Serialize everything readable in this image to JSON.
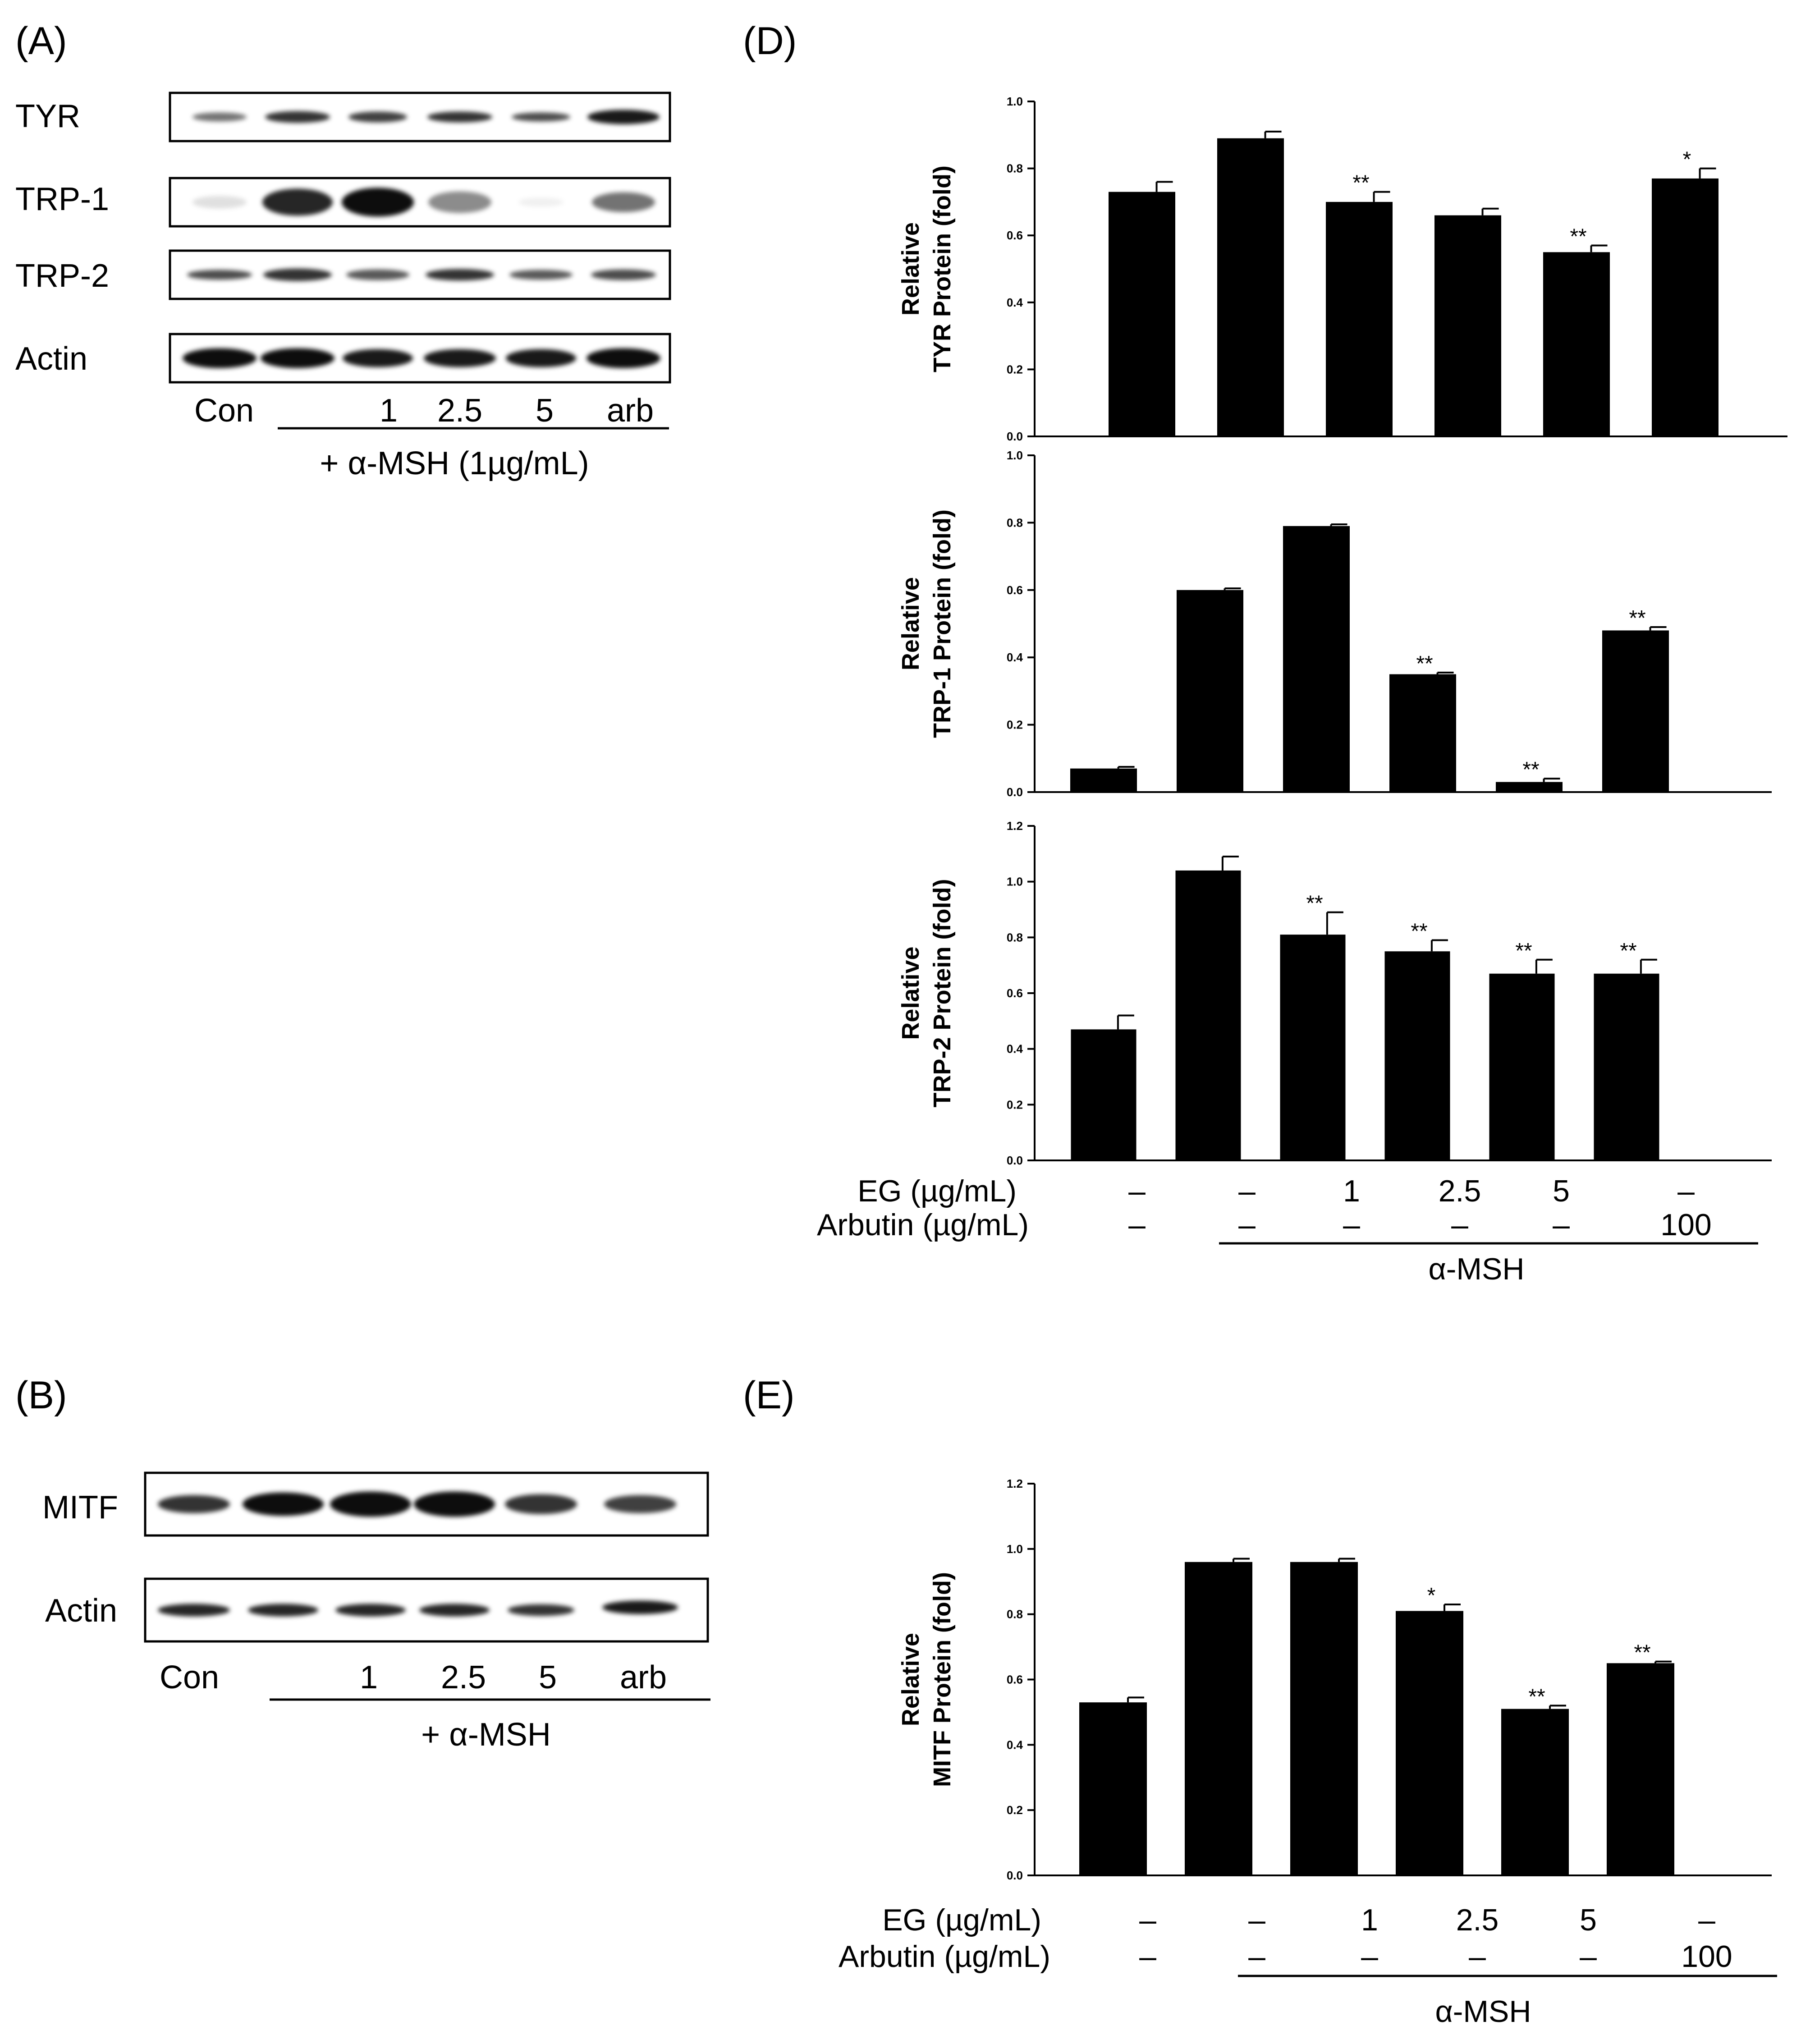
{
  "panels": {
    "A": {
      "label": "(A)",
      "rows": [
        "TYR",
        "TRP-1",
        "TRP-2",
        "Actin"
      ],
      "lanes": [
        "Con",
        "",
        "1",
        "2.5",
        "5",
        "arb"
      ],
      "treatment": "+ α-MSH (1µg/mL)"
    },
    "B": {
      "label": "(B)",
      "rows": [
        "MITF",
        "Actin"
      ],
      "lanes": [
        "Con",
        "",
        "1",
        "2.5",
        "5",
        "arb"
      ],
      "treatment": "+ α-MSH"
    },
    "D": {
      "label": "(D)"
    },
    "E": {
      "label": "(E)"
    }
  },
  "conditions": {
    "eg_label": "EG (µg/mL)",
    "arbutin_label": "Arbutin (µg/mL)",
    "eg": [
      "–",
      "–",
      "1",
      "2.5",
      "5",
      "–"
    ],
    "arbutin": [
      "–",
      "–",
      "–",
      "–",
      "–",
      "100"
    ],
    "msh_label": "α-MSH"
  },
  "chart_data": [
    {
      "type": "bar",
      "panel": "D",
      "ylabel_line1": "Relative",
      "ylabel_line2": "TYR Protein (fold)",
      "ylim": [
        0,
        1.0
      ],
      "yticks": [
        "0.0",
        "0.2",
        "0.4",
        "0.6",
        "0.8",
        "1.0"
      ],
      "values": [
        0.73,
        0.89,
        0.7,
        0.66,
        0.55,
        0.77
      ],
      "errors": [
        0.03,
        0.02,
        0.03,
        0.02,
        0.02,
        0.03
      ],
      "significance": [
        "",
        "",
        "**",
        "",
        "**",
        "*"
      ]
    },
    {
      "type": "bar",
      "panel": "D",
      "ylabel_line1": "Relative",
      "ylabel_line2": "TRP-1 Protein (fold)",
      "ylim": [
        0,
        1.0
      ],
      "yticks": [
        "0.0",
        "0.2",
        "0.4",
        "0.6",
        "0.8",
        "1.0"
      ],
      "values": [
        0.07,
        0.6,
        0.79,
        0.35,
        0.03,
        0.48
      ],
      "errors": [
        0.005,
        0.005,
        0.005,
        0.005,
        0.01,
        0.01
      ],
      "significance": [
        "",
        "",
        "",
        "**",
        "**",
        "**"
      ]
    },
    {
      "type": "bar",
      "panel": "D",
      "ylabel_line1": "Relative",
      "ylabel_line2": "TRP-2 Protein (fold)",
      "ylim": [
        0,
        1.2
      ],
      "yticks": [
        "0.0",
        "0.2",
        "0.4",
        "0.6",
        "0.8",
        "1.0",
        "1.2"
      ],
      "values": [
        0.47,
        1.04,
        0.81,
        0.75,
        0.67,
        0.67
      ],
      "errors": [
        0.05,
        0.05,
        0.08,
        0.04,
        0.05,
        0.05
      ],
      "significance": [
        "",
        "",
        "**",
        "**",
        "**",
        "**"
      ]
    },
    {
      "type": "bar",
      "panel": "E",
      "ylabel_line1": "Relative",
      "ylabel_line2": "MITF Protein (fold)",
      "ylim": [
        0,
        1.2
      ],
      "yticks": [
        "0.0",
        "0.2",
        "0.4",
        "0.6",
        "0.8",
        "1.0",
        "1.2"
      ],
      "values": [
        0.53,
        0.96,
        0.96,
        0.81,
        0.51,
        0.65
      ],
      "errors": [
        0.015,
        0.01,
        0.01,
        0.02,
        0.01,
        0.005
      ],
      "significance": [
        "",
        "",
        "",
        "*",
        "**",
        "**"
      ]
    }
  ]
}
